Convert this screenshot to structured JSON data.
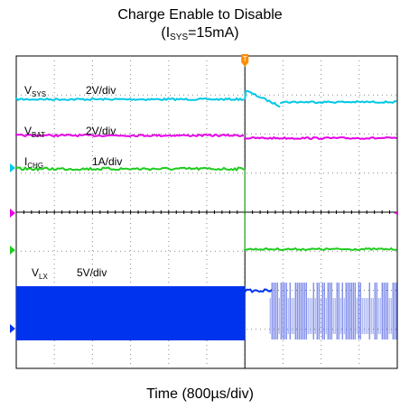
{
  "title_main": "Charge Enable to Disable",
  "title_sub": {
    "prefix": "(I",
    "subscript": "SYS",
    "suffix": "=15mA)"
  },
  "chart_data": {
    "type": "line",
    "title": "Charge Enable to Disable (ISYS=15mA)",
    "xlabel": "Time (800µs/div)",
    "ylabel": "",
    "grid": true,
    "divisions": {
      "x": 10,
      "y": 8
    },
    "x_unit": "µs",
    "xlim": [
      0,
      8000
    ],
    "event_time": 4800,
    "series": [
      {
        "name": "VSYS",
        "label_main": "V",
        "label_sub": "SYS",
        "scale": "2V/div",
        "color": "#00c8e6",
        "description": "flat then transient after disable",
        "points": [
          [
            0,
            4.0
          ],
          [
            4800,
            4.0
          ],
          [
            4810,
            4.2
          ],
          [
            5000,
            4.0
          ],
          [
            5400,
            3.8
          ],
          [
            6000,
            3.8
          ],
          [
            8000,
            3.8
          ]
        ]
      },
      {
        "name": "VBAT",
        "label_main": "V",
        "label_sub": "BAT",
        "scale": "2V/div",
        "color": "#e600e6",
        "points": [
          [
            0,
            3.8
          ],
          [
            4800,
            3.8
          ],
          [
            4800,
            3.7
          ],
          [
            8000,
            3.7
          ]
        ]
      },
      {
        "name": "ICHG",
        "label_main": "I",
        "label_sub": "CHG",
        "scale": "1A/div",
        "color": "#1ecc1e",
        "points": [
          [
            0,
            1.0
          ],
          [
            4800,
            1.0
          ],
          [
            4800,
            0.0
          ],
          [
            8000,
            0.0
          ]
        ]
      },
      {
        "name": "VLX",
        "label_main": "V",
        "label_sub": "LX",
        "scale": "5V/div",
        "color": "#0033ee",
        "description": "switching node, dense switching before disable, burst pulses after",
        "points": [
          [
            0,
            0
          ],
          [
            4800,
            0
          ],
          [
            8000,
            0
          ]
        ]
      }
    ]
  }
}
